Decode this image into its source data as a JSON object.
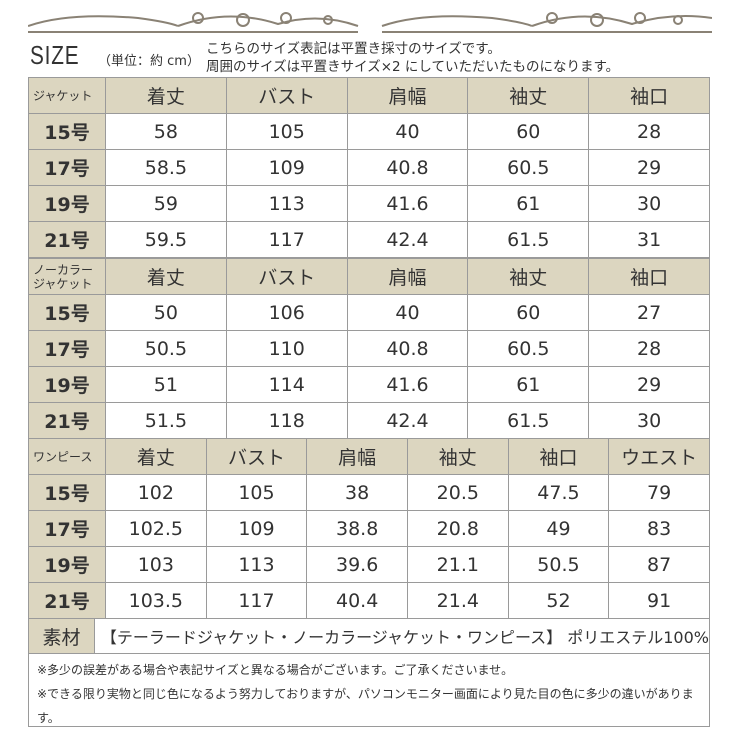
{
  "header": {
    "size_label": "SIZE",
    "unit": "（単位：約 cm）",
    "note1": "こちらのサイズ表記は平置き採寸のサイズです。",
    "note2": "周囲のサイズは平置きサイズ×2 にしていただいたものになります。"
  },
  "tables": [
    {
      "category": "ジャケット",
      "columns": [
        "着丈",
        "バスト",
        "肩幅",
        "袖丈",
        "袖口"
      ],
      "rows": [
        {
          "size": "15号",
          "values": [
            "58",
            "105",
            "40",
            "60",
            "28"
          ]
        },
        {
          "size": "17号",
          "values": [
            "58.5",
            "109",
            "40.8",
            "60.5",
            "29"
          ]
        },
        {
          "size": "19号",
          "values": [
            "59",
            "113",
            "41.6",
            "61",
            "30"
          ]
        },
        {
          "size": "21号",
          "values": [
            "59.5",
            "117",
            "42.4",
            "61.5",
            "31"
          ]
        }
      ]
    },
    {
      "category": "ノーカラー ジャケット",
      "columns": [
        "着丈",
        "バスト",
        "肩幅",
        "袖丈",
        "袖口"
      ],
      "rows": [
        {
          "size": "15号",
          "values": [
            "50",
            "106",
            "40",
            "60",
            "27"
          ]
        },
        {
          "size": "17号",
          "values": [
            "50.5",
            "110",
            "40.8",
            "60.5",
            "28"
          ]
        },
        {
          "size": "19号",
          "values": [
            "51",
            "114",
            "41.6",
            "61",
            "29"
          ]
        },
        {
          "size": "21号",
          "values": [
            "51.5",
            "118",
            "42.4",
            "61.5",
            "30"
          ]
        }
      ]
    },
    {
      "category": "ワンピース",
      "columns": [
        "着丈",
        "バスト",
        "肩幅",
        "袖丈",
        "袖口",
        "ウエスト"
      ],
      "rows": [
        {
          "size": "15号",
          "values": [
            "102",
            "105",
            "38",
            "20.5",
            "47.5",
            "79"
          ]
        },
        {
          "size": "17号",
          "values": [
            "102.5",
            "109",
            "38.8",
            "20.8",
            "49",
            "83"
          ]
        },
        {
          "size": "19号",
          "values": [
            "103",
            "113",
            "39.6",
            "21.1",
            "50.5",
            "87"
          ]
        },
        {
          "size": "21号",
          "values": [
            "103.5",
            "117",
            "40.4",
            "21.4",
            "52",
            "91"
          ]
        }
      ]
    }
  ],
  "material": {
    "label": "素材",
    "value": "【テーラードジャケット・ノーカラージャケット・ワンピース】 ポリエステル100%"
  },
  "notes": [
    "※多少の誤差がある場合や表記サイズと異なる場合がございます。ご了承くださいませ。",
    "※できる限り実物と同じ色になるよう努力しておりますが、パソコンモニター画面により見た目の色に多少の違いがあります。"
  ]
}
